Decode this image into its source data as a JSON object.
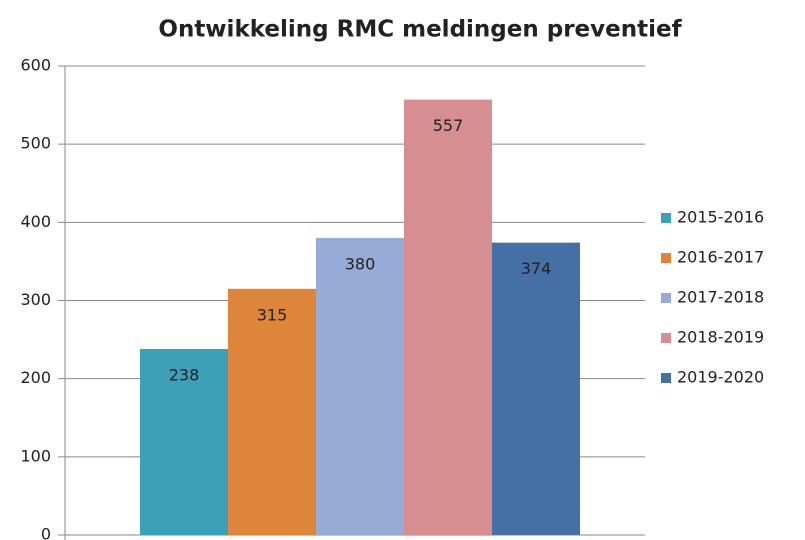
{
  "chart_data": {
    "type": "bar",
    "title": "Ontwikkeling RMC meldingen preventief",
    "series": [
      {
        "name": "2015-2016",
        "color": "#3d9fb8",
        "values": [
          238
        ]
      },
      {
        "name": "2016-2017",
        "color": "#dd853a",
        "values": [
          315
        ]
      },
      {
        "name": "2017-2018",
        "color": "#96acd6",
        "values": [
          380
        ]
      },
      {
        "name": "2018-2019",
        "color": "#d68e90",
        "values": [
          557
        ]
      },
      {
        "name": "2019-2020",
        "color": "#4470a6",
        "values": [
          374
        ]
      }
    ],
    "ylim": [
      0,
      600
    ],
    "yticks": [
      0,
      100,
      200,
      300,
      400,
      500,
      600
    ],
    "grid": true,
    "legend": "right"
  }
}
